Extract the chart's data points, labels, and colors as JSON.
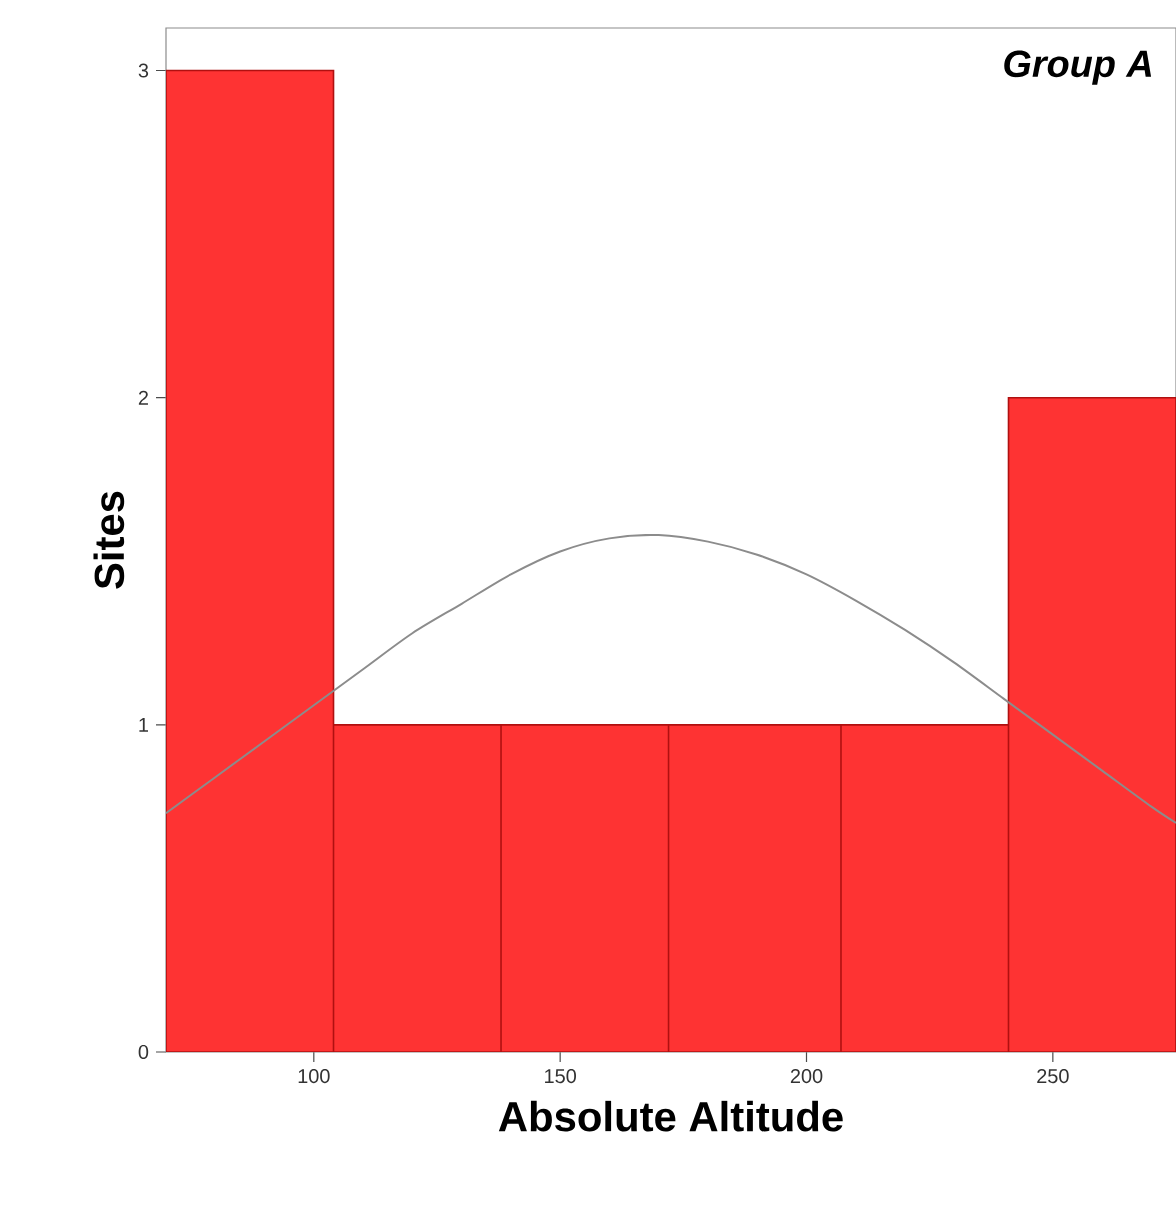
{
  "chart_data": {
    "type": "histogram",
    "title": "Group A",
    "xlabel": "Absolute Altitude",
    "ylabel": "Sites",
    "bins": [
      70,
      104,
      138,
      172,
      207,
      241,
      275
    ],
    "values": [
      3,
      1,
      1,
      1,
      1,
      2
    ],
    "color": "#fe3333",
    "series": [
      {
        "type": "line",
        "color": "#8c8c8c",
        "x": [
          70,
          80,
          90,
          100,
          110,
          120,
          130,
          140,
          150,
          160,
          170,
          180,
          190,
          200,
          210,
          220,
          230,
          240,
          250,
          260,
          270,
          275
        ],
        "values": [
          0.73,
          0.84,
          0.95,
          1.06,
          1.17,
          1.28,
          1.37,
          1.46,
          1.53,
          1.57,
          1.58,
          1.56,
          1.52,
          1.46,
          1.38,
          1.29,
          1.19,
          1.08,
          0.97,
          0.86,
          0.75,
          0.7
        ]
      }
    ],
    "xlim": [
      70,
      275
    ],
    "ylim": [
      0,
      3.13
    ],
    "xticks": [
      100,
      150,
      200,
      250
    ],
    "yticks": [
      0,
      1,
      2,
      3
    ],
    "grid": false,
    "marker": "none",
    "line_style": "solid"
  }
}
